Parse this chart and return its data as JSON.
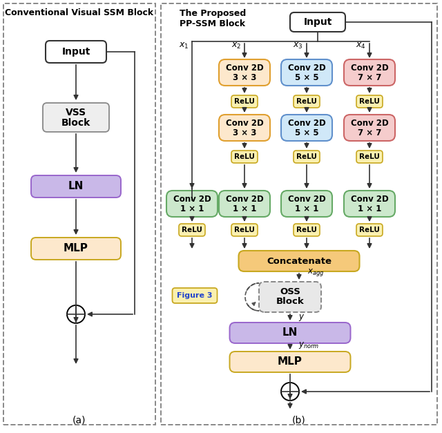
{
  "fig_width": 6.4,
  "fig_height": 6.27,
  "bg_color": "#ffffff",
  "title_a": "Conventional Visual SSM Block",
  "title_b": "The Proposed\nPP-SSM Block",
  "label_a": "(a)",
  "label_b": "(b)",
  "colors": {
    "white_box": "#ffffff",
    "vss_box": "#eeeeee",
    "ln_box": "#c9b8e8",
    "mlp_box": "#f5c97a",
    "mlp_bg": "#fde8cc",
    "conv_orange_bg": "#fde8cc",
    "conv_orange_border": "#e0a030",
    "conv_blue_bg": "#d0e8f8",
    "conv_blue_border": "#6090cc",
    "conv_pink_bg": "#f5cccc",
    "conv_pink_border": "#cc6666",
    "conv_green_bg": "#cce8cc",
    "conv_green_border": "#66aa66",
    "relu_box": "#faf0b0",
    "relu_border": "#c8a820",
    "concat_bg": "#f5c97a",
    "concat_border": "#c8a820",
    "oss_box": "#e8e8e8",
    "oss_border": "#888888",
    "fig3_bg": "#faf0b0",
    "fig3_border": "#c8a820",
    "ln_border": "#9966cc",
    "mlp_border": "#c8a820",
    "input_border": "#333333",
    "vss_border": "#888888",
    "arrow_color": "#333333"
  }
}
